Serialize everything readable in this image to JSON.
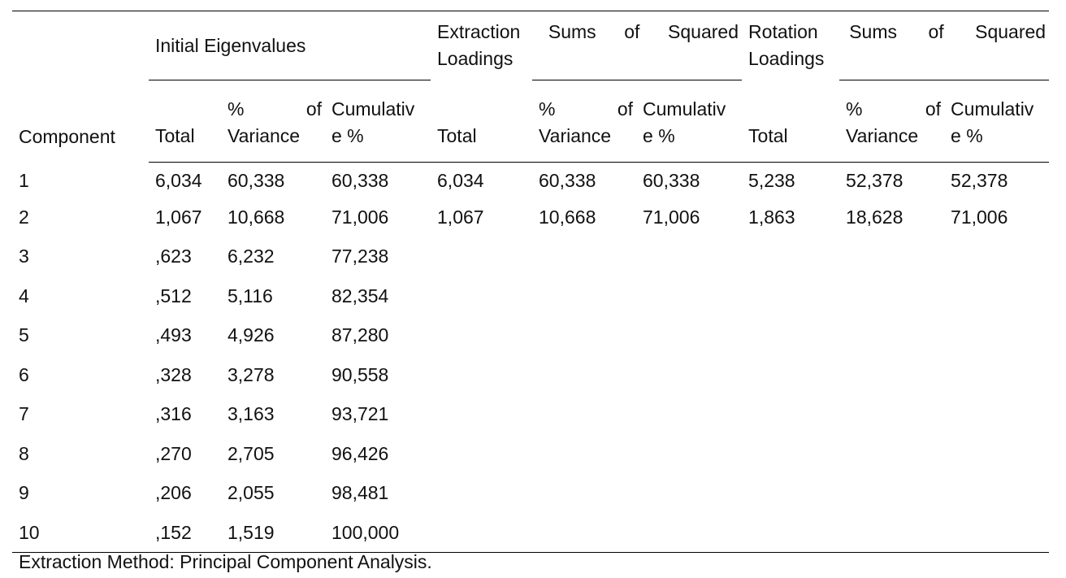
{
  "table": {
    "header": {
      "component": "Component",
      "groups": [
        {
          "line1_words": [
            "Initial Eigenvalues"
          ],
          "line2": ""
        },
        {
          "line1_words": [
            "Extraction",
            "Sums",
            "of",
            "Squared"
          ],
          "line2": "Loadings"
        },
        {
          "line1_words": [
            "Rotation",
            "Sums",
            "of",
            "Squared"
          ],
          "line2": "Loadings"
        }
      ],
      "sub": {
        "total": "Total",
        "pct_line1_a": "%",
        "pct_line1_b": "of",
        "pct_line2": "Variance",
        "cum_line1": "Cumulativ",
        "cum_line2": "e %"
      }
    },
    "rows": [
      [
        "1",
        "6,034",
        "60,338",
        "60,338",
        "6,034",
        "60,338",
        "60,338",
        "5,238",
        "52,378",
        "52,378"
      ],
      [
        "2",
        "1,067",
        "10,668",
        "71,006",
        "1,067",
        "10,668",
        "71,006",
        "1,863",
        "18,628",
        "71,006"
      ],
      [
        "3",
        ",623",
        "6,232",
        "77,238",
        "",
        "",
        "",
        "",
        "",
        ""
      ],
      [
        "4",
        ",512",
        "5,116",
        "82,354",
        "",
        "",
        "",
        "",
        "",
        ""
      ],
      [
        "5",
        ",493",
        "4,926",
        "87,280",
        "",
        "",
        "",
        "",
        "",
        ""
      ],
      [
        "6",
        ",328",
        "3,278",
        "90,558",
        "",
        "",
        "",
        "",
        "",
        ""
      ],
      [
        "7",
        ",316",
        "3,163",
        "93,721",
        "",
        "",
        "",
        "",
        "",
        ""
      ],
      [
        "8",
        ",270",
        "2,705",
        "96,426",
        "",
        "",
        "",
        "",
        "",
        ""
      ],
      [
        "9",
        ",206",
        "2,055",
        "98,481",
        "",
        "",
        "",
        "",
        "",
        ""
      ],
      [
        "10",
        ",152",
        "1,519",
        "100,000",
        "",
        "",
        "",
        "",
        "",
        ""
      ]
    ]
  },
  "footnote": "Extraction Method: Principal Component Analysis."
}
